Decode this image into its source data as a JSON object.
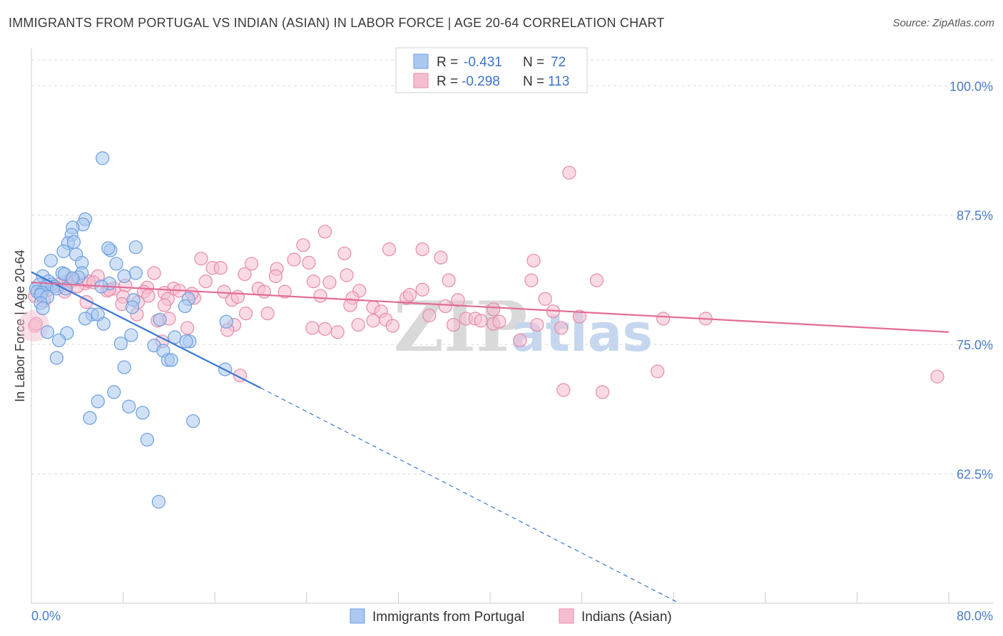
{
  "title": "IMMIGRANTS FROM PORTUGAL VS INDIAN (ASIAN) IN LABOR FORCE | AGE 20-64 CORRELATION CHART",
  "source": "Source: ZipAtlas.com",
  "watermark": {
    "zip": "ZIP",
    "atlas": "atlas"
  },
  "chart_data": {
    "type": "scatter",
    "title": "IMMIGRANTS FROM PORTUGAL VS INDIAN (ASIAN) IN LABOR FORCE | AGE 20-64 CORRELATION CHART",
    "xlabel": "",
    "ylabel": "In Labor Force | Age 20-64",
    "xlim": [
      0,
      80
    ],
    "ylim": [
      50,
      102.5
    ],
    "x_tick_labels": [
      "0.0%",
      "80.0%"
    ],
    "y_ticks": [
      62.5,
      75.0,
      87.5,
      100.0
    ],
    "y_tick_labels": [
      "62.5%",
      "75.0%",
      "87.5%",
      "100.0%"
    ],
    "grid": true,
    "legend": {
      "position": "top-center",
      "rows": [
        {
          "r_label": "R =",
          "r": "-0.431",
          "n_label": "N =",
          "n": "72"
        },
        {
          "r_label": "R =",
          "r": "-0.298",
          "n_label": "N =",
          "n": "113"
        }
      ]
    },
    "series": [
      {
        "name": "Immigrants from Portugal",
        "color": "#6a9ee0",
        "fill": "#aac8f0",
        "trend": {
          "x0": 0,
          "y0": 82.0,
          "x1": 20,
          "y1": 70.8,
          "dash_to_x": 56.5,
          "dash_to_y": 50.0
        },
        "points": [
          [
            6.2,
            93.0
          ],
          [
            4.7,
            87.1
          ],
          [
            4.5,
            86.6
          ],
          [
            3.6,
            86.3
          ],
          [
            3.5,
            85.6
          ],
          [
            3.2,
            84.8
          ],
          [
            3.7,
            84.9
          ],
          [
            9.1,
            84.4
          ],
          [
            6.9,
            84.1
          ],
          [
            6.7,
            84.3
          ],
          [
            2.8,
            84.0
          ],
          [
            3.9,
            83.7
          ],
          [
            1.7,
            83.1
          ],
          [
            4.4,
            82.9
          ],
          [
            7.4,
            82.8
          ],
          [
            2.7,
            81.9
          ],
          [
            2.9,
            81.8
          ],
          [
            4.4,
            81.9
          ],
          [
            4.1,
            81.5
          ],
          [
            9.1,
            81.9
          ],
          [
            1.0,
            81.6
          ],
          [
            8.1,
            81.6
          ],
          [
            1.5,
            81.1
          ],
          [
            3.6,
            81.4
          ],
          [
            6.8,
            80.9
          ],
          [
            1.8,
            80.8
          ],
          [
            2.0,
            80.6
          ],
          [
            0.7,
            80.8
          ],
          [
            1.3,
            80.6
          ],
          [
            2.2,
            80.4
          ],
          [
            0.4,
            80.4
          ],
          [
            0.5,
            80.1
          ],
          [
            0.9,
            80.0
          ],
          [
            0.8,
            79.8
          ],
          [
            1.4,
            79.6
          ],
          [
            8.9,
            79.3
          ],
          [
            13.7,
            79.4
          ],
          [
            0.8,
            79.0
          ],
          [
            1.0,
            78.5
          ],
          [
            8.8,
            78.6
          ],
          [
            13.4,
            78.7
          ],
          [
            5.3,
            77.9
          ],
          [
            5.8,
            77.9
          ],
          [
            4.7,
            77.5
          ],
          [
            11.2,
            77.4
          ],
          [
            17.0,
            77.2
          ],
          [
            6.3,
            77.0
          ],
          [
            1.4,
            76.2
          ],
          [
            3.1,
            76.1
          ],
          [
            8.7,
            75.9
          ],
          [
            2.4,
            75.4
          ],
          [
            12.5,
            75.7
          ],
          [
            13.8,
            75.3
          ],
          [
            7.8,
            75.1
          ],
          [
            10.7,
            74.9
          ],
          [
            11.5,
            74.4
          ],
          [
            2.2,
            73.7
          ],
          [
            11.9,
            73.5
          ],
          [
            12.2,
            73.5
          ],
          [
            8.1,
            72.8
          ],
          [
            16.9,
            72.6
          ],
          [
            7.2,
            70.4
          ],
          [
            5.8,
            69.5
          ],
          [
            8.5,
            69.0
          ],
          [
            9.7,
            68.4
          ],
          [
            5.1,
            67.9
          ],
          [
            14.1,
            67.6
          ],
          [
            10.1,
            65.8
          ],
          [
            11.1,
            59.8
          ],
          [
            13.5,
            75.3
          ],
          [
            3.0,
            80.4
          ],
          [
            6.1,
            80.6
          ]
        ]
      },
      {
        "name": "Indians (Asian)",
        "color": "#e88aa8",
        "fill": "#f5bdd0",
        "trend": {
          "x0": 0,
          "y0": 81.0,
          "x1": 80,
          "y1": 76.2
        },
        "points": [
          [
            46.9,
            91.6
          ],
          [
            25.6,
            85.9
          ],
          [
            31.2,
            84.2
          ],
          [
            34.1,
            84.2
          ],
          [
            23.7,
            84.6
          ],
          [
            27.3,
            83.8
          ],
          [
            14.8,
            83.3
          ],
          [
            35.7,
            83.4
          ],
          [
            22.9,
            83.2
          ],
          [
            19.2,
            82.8
          ],
          [
            24.2,
            82.9
          ],
          [
            43.8,
            83.1
          ],
          [
            15.8,
            82.4
          ],
          [
            16.5,
            82.4
          ],
          [
            21.4,
            82.3
          ],
          [
            18.6,
            81.8
          ],
          [
            27.5,
            81.7
          ],
          [
            10.7,
            81.9
          ],
          [
            5.8,
            81.6
          ],
          [
            21.3,
            81.6
          ],
          [
            15.2,
            81.1
          ],
          [
            24.6,
            81.1
          ],
          [
            36.4,
            81.2
          ],
          [
            43.6,
            81.2
          ],
          [
            49.3,
            81.2
          ],
          [
            3.0,
            81.1
          ],
          [
            4.7,
            80.9
          ],
          [
            5.0,
            81.1
          ],
          [
            3.7,
            81.2
          ],
          [
            3.1,
            80.7
          ],
          [
            4.0,
            80.6
          ],
          [
            7.2,
            80.4
          ],
          [
            8.2,
            80.7
          ],
          [
            10.1,
            80.5
          ],
          [
            12.4,
            80.4
          ],
          [
            1.5,
            80.3
          ],
          [
            2.9,
            80.1
          ],
          [
            6.6,
            80.2
          ],
          [
            9.8,
            80.1
          ],
          [
            11.6,
            80.0
          ],
          [
            12.9,
            80.2
          ],
          [
            16.8,
            80.1
          ],
          [
            19.8,
            80.4
          ],
          [
            20.3,
            80.1
          ],
          [
            22.1,
            80.1
          ],
          [
            28.6,
            80.2
          ],
          [
            34.1,
            80.3
          ],
          [
            8.0,
            79.6
          ],
          [
            10.2,
            79.7
          ],
          [
            11.9,
            79.4
          ],
          [
            14.2,
            79.5
          ],
          [
            17.5,
            79.3
          ],
          [
            28.0,
            79.5
          ],
          [
            32.7,
            79.5
          ],
          [
            37.2,
            79.3
          ],
          [
            44.8,
            79.4
          ],
          [
            1.1,
            79.2
          ],
          [
            4.8,
            79.1
          ],
          [
            7.9,
            78.9
          ],
          [
            11.6,
            78.8
          ],
          [
            27.8,
            78.8
          ],
          [
            29.8,
            78.6
          ],
          [
            36.1,
            78.7
          ],
          [
            40.3,
            78.4
          ],
          [
            45.5,
            78.2
          ],
          [
            18.7,
            78.0
          ],
          [
            9.2,
            77.9
          ],
          [
            20.6,
            78.0
          ],
          [
            30.5,
            78.2
          ],
          [
            34.7,
            77.8
          ],
          [
            29.8,
            77.3
          ],
          [
            30.9,
            77.4
          ],
          [
            37.9,
            77.5
          ],
          [
            38.7,
            77.5
          ],
          [
            39.2,
            77.3
          ],
          [
            47.8,
            77.7
          ],
          [
            55.1,
            77.5
          ],
          [
            58.8,
            77.5
          ],
          [
            11.0,
            77.3
          ],
          [
            17.7,
            76.9
          ],
          [
            28.5,
            76.9
          ],
          [
            31.5,
            76.8
          ],
          [
            36.8,
            76.9
          ],
          [
            40.3,
            77.0
          ],
          [
            40.8,
            77.2
          ],
          [
            44.1,
            76.9
          ],
          [
            13.6,
            76.6
          ],
          [
            17.1,
            76.4
          ],
          [
            24.5,
            76.6
          ],
          [
            25.6,
            76.5
          ],
          [
            26.7,
            76.2
          ],
          [
            46.2,
            76.6
          ],
          [
            42.6,
            75.4
          ],
          [
            11.4,
            75.3
          ],
          [
            54.6,
            72.4
          ],
          [
            79.0,
            71.9
          ],
          [
            18.2,
            72.0
          ],
          [
            46.4,
            70.6
          ],
          [
            49.8,
            70.4
          ],
          [
            0.3,
            76.8
          ],
          [
            0.4,
            77.0
          ],
          [
            0.3,
            79.7
          ],
          [
            14.0,
            79.9
          ],
          [
            2.4,
            80.8
          ],
          [
            3.5,
            81.4
          ],
          [
            5.4,
            81.0
          ],
          [
            6.8,
            80.3
          ],
          [
            9.3,
            79.1
          ],
          [
            12.0,
            77.5
          ],
          [
            18.0,
            79.6
          ],
          [
            25.2,
            79.7
          ],
          [
            33.0,
            79.8
          ],
          [
            26.0,
            81.0
          ]
        ]
      }
    ]
  }
}
